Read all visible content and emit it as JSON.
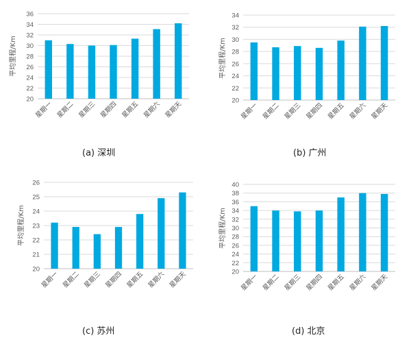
{
  "accent_color": "#00a9e0",
  "chart_data": [
    {
      "type": "bar",
      "caption": "(a)  深圳",
      "categories": [
        "星期一",
        "星期二",
        "星期三",
        "星期四",
        "星期五",
        "星期六",
        "星期天"
      ],
      "values": [
        31.0,
        30.3,
        30.0,
        30.1,
        31.3,
        33.1,
        34.2
      ],
      "ylabel": "平均里程/Km",
      "ylim": [
        20,
        36
      ],
      "yticks": [
        20,
        22,
        24,
        26,
        28,
        30,
        32,
        34,
        36
      ],
      "grid": true
    },
    {
      "type": "bar",
      "caption": "(b)  广州",
      "categories": [
        "星期一",
        "星期二",
        "星期三",
        "星期四",
        "星期五",
        "星期六",
        "星期天"
      ],
      "values": [
        29.5,
        28.7,
        28.9,
        28.6,
        29.8,
        32.1,
        32.2
      ],
      "ylabel": "平均里程/Km",
      "ylim": [
        20,
        34
      ],
      "yticks": [
        20,
        22,
        24,
        26,
        28,
        30,
        32,
        34
      ],
      "grid": true
    },
    {
      "type": "bar",
      "caption": "(c)  苏州",
      "categories": [
        "星期一",
        "星期二",
        "星期三",
        "星期四",
        "星期五",
        "星期六",
        "星期天"
      ],
      "values": [
        23.2,
        22.9,
        22.4,
        22.9,
        23.8,
        24.9,
        25.3
      ],
      "ylabel": "平均里程/Km",
      "ylim": [
        20,
        26
      ],
      "yticks": [
        20,
        21,
        22,
        23,
        24,
        25,
        26
      ],
      "grid": true
    },
    {
      "type": "bar",
      "caption": "(d)  北京",
      "categories": [
        "星期一",
        "星期二",
        "星期三",
        "星期四",
        "星期五",
        "星期六",
        "星期天"
      ],
      "values": [
        35.0,
        34.0,
        33.8,
        34.0,
        37.0,
        38.0,
        37.8
      ],
      "ylabel": "平均里程/Km",
      "ylim": [
        20,
        40
      ],
      "yticks": [
        20,
        22,
        24,
        26,
        28,
        30,
        32,
        34,
        36,
        38,
        40
      ],
      "grid": true
    }
  ]
}
